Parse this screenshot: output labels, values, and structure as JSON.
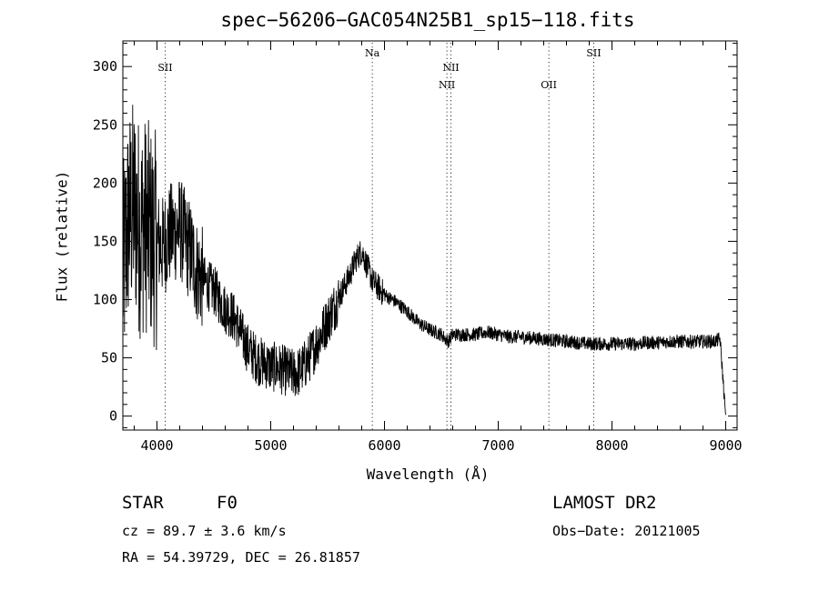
{
  "chart_data": {
    "type": "line",
    "title": "spec−56206−GAC054N25B1_sp15−118.fits",
    "xlabel": "Wavelength (Å)",
    "ylabel": "Flux (relative)",
    "xlim": [
      3700,
      9100
    ],
    "ylim": [
      -12,
      322
    ],
    "xticks": [
      4000,
      5000,
      6000,
      7000,
      8000,
      9000
    ],
    "yticks": [
      0,
      50,
      100,
      150,
      200,
      250,
      300
    ],
    "grid": false,
    "series": [
      {
        "x": [
          3700,
          3750,
          3800,
          3850,
          3900,
          3950,
          4000,
          4050,
          4100,
          4150,
          4200,
          4250,
          4300,
          4350,
          4400,
          4450,
          4500,
          4550,
          4600,
          4650,
          4700,
          4750,
          4800,
          4850,
          4900,
          4950,
          5000,
          5050,
          5100,
          5150,
          5200,
          5250,
          5300,
          5350,
          5400,
          5450,
          5500,
          5550,
          5600,
          5650,
          5700,
          5750,
          5800,
          5850,
          5900,
          5950,
          6000,
          6100,
          6200,
          6300,
          6400,
          6500,
          6560,
          6600,
          6700,
          6800,
          6900,
          7000,
          7100,
          7200,
          7300,
          7400,
          7500,
          7600,
          7700,
          7800,
          7900,
          8000,
          8100,
          8200,
          8300,
          8400,
          8500,
          8600,
          8700,
          8800,
          8900,
          8950,
          9000
        ],
        "y": [
          120,
          170,
          180,
          160,
          165,
          155,
          150,
          145,
          155,
          158,
          162,
          150,
          140,
          125,
          118,
          112,
          108,
          100,
          92,
          88,
          80,
          68,
          58,
          52,
          47,
          45,
          42,
          42,
          40,
          38,
          36,
          38,
          44,
          52,
          62,
          72,
          82,
          92,
          102,
          112,
          122,
          135,
          142,
          128,
          115,
          110,
          104,
          98,
          90,
          80,
          74,
          70,
          64,
          70,
          70,
          70,
          72,
          70,
          68,
          68,
          67,
          66,
          65,
          64,
          63,
          62,
          62,
          62,
          62,
          62,
          63,
          63,
          64,
          64,
          64,
          64,
          64,
          66,
          0
        ],
        "note_points": []
      }
    ],
    "lines": [
      {
        "label": "SII",
        "x": 4072,
        "row": 1
      },
      {
        "label": "Na",
        "x": 5893,
        "row": 0
      },
      {
        "label": "NII",
        "x": 6549,
        "row": 2
      },
      {
        "label": "NII",
        "x": 6584,
        "row": 1
      },
      {
        "label": "OII",
        "x": 7445,
        "row": 2
      },
      {
        "label": "SII",
        "x": 7840,
        "row": 0
      }
    ]
  },
  "info": {
    "object_type": "STAR",
    "subclass": "F0",
    "survey": "LAMOST DR2",
    "redshift": "cz = 89.7 ± 3.6 km/s",
    "obs_date": "Obs−Date: 20121005",
    "coords": "RA =  54.39729, DEC =  26.81857"
  }
}
